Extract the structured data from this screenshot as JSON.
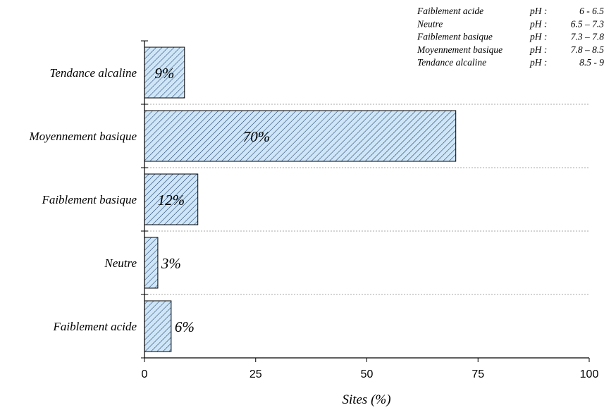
{
  "chart_data": {
    "type": "bar",
    "orientation": "horizontal",
    "categories": [
      "Faiblement acide",
      "Neutre",
      "Faiblement basique",
      "Moyennement basique",
      "Tendance alcaline"
    ],
    "values": [
      6,
      3,
      12,
      70,
      9
    ],
    "data_labels": [
      "6%",
      "3%",
      "12%",
      "70%",
      "9%"
    ],
    "xlabel": "Sites (%)",
    "xlim": [
      0,
      100
    ],
    "xticks": [
      0,
      25,
      50,
      75,
      100
    ],
    "grid": "horizontal dotted lines between categories",
    "legend_position": "top-right",
    "legend": [
      {
        "name": "Faiblement acide",
        "ph_label": "pH :",
        "range": "6 - 6.5"
      },
      {
        "name": "Neutre",
        "ph_label": "pH :",
        "range": "6.5 – 7.3"
      },
      {
        "name": "Faiblement basique",
        "ph_label": "pH :",
        "range": "7.3 – 7.8"
      },
      {
        "name": "Moyennement basique",
        "ph_label": "pH :",
        "range": "7.8 – 8.5"
      },
      {
        "name": "Tendance alcaline",
        "ph_label": "pH :",
        "range": "8.5 - 9"
      }
    ],
    "colors": {
      "bar_fill": "#cfe6f7",
      "hatch": "#1a3a6b",
      "bar_stroke": "#000000",
      "grid": "#aaaaaa"
    }
  }
}
